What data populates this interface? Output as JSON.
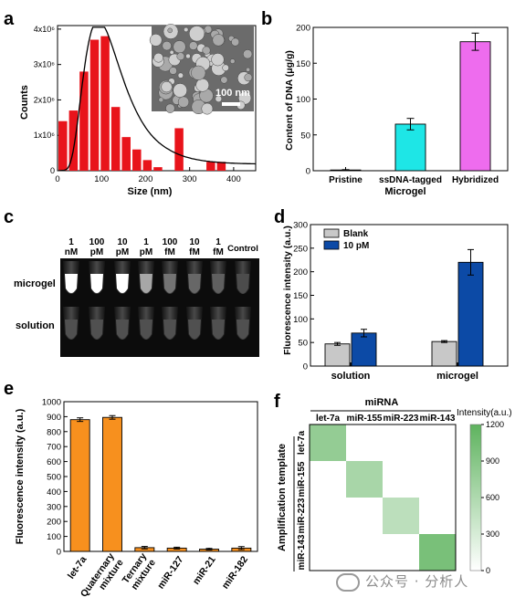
{
  "panels": {
    "a": {
      "label": "a",
      "chart_data": {
        "type": "bar",
        "x": [
          12,
          36,
          60,
          84,
          108,
          132,
          156,
          180,
          204,
          228,
          252,
          276,
          300,
          324,
          348,
          372
        ],
        "values": [
          1400000.0,
          1700000.0,
          2800000.0,
          3700000.0,
          3800000.0,
          1800000.0,
          950000.0,
          600000.0,
          300000.0,
          100000.0,
          0,
          1200000.0,
          0,
          0,
          250000.0,
          250000.0
        ],
        "fit_curve": "log-normal",
        "xlabel": "Size (nm)",
        "ylabel": "Counts",
        "xticks": [
          "0",
          "100",
          "200",
          "300",
          "400"
        ],
        "yticks": [
          "0",
          "1x10⁶",
          "2x10⁶",
          "3x10⁶",
          "4x10⁶"
        ],
        "xlim": [
          0,
          450
        ],
        "ylim": [
          0,
          4100000.0
        ],
        "bar_color": "#e8141b",
        "inset_scale_label": "100 nm"
      }
    },
    "b": {
      "label": "b",
      "chart_data": {
        "type": "bar",
        "categories": [
          "Pristine",
          "ssDNA-tagged",
          "Hybridized"
        ],
        "values": [
          1,
          65,
          180
        ],
        "errors": [
          0.5,
          8,
          12
        ],
        "colors": [
          "#bbbbbb",
          "#1ee6e6",
          "#ee6cee"
        ],
        "xlabel": "Microgel",
        "ylabel": "Content of DNA (μg/g)",
        "yticks": [
          "0",
          "50",
          "100",
          "150",
          "200"
        ],
        "ylim": [
          0,
          200
        ]
      }
    },
    "c": {
      "label": "c",
      "columns": [
        {
          "top": "1",
          "bottom": "nM"
        },
        {
          "top": "100",
          "bottom": "pM"
        },
        {
          "top": "10",
          "bottom": "pM"
        },
        {
          "top": "1",
          "bottom": "pM"
        },
        {
          "top": "100",
          "bottom": "fM"
        },
        {
          "top": "10",
          "bottom": "fM"
        },
        {
          "top": "1",
          "bottom": "fM"
        },
        {
          "top": "Control",
          "bottom": ""
        }
      ],
      "rows": [
        "microgel",
        "solution"
      ]
    },
    "d": {
      "label": "d",
      "chart_data": {
        "type": "bar",
        "categories": [
          "solution",
          "microgel"
        ],
        "series": [
          {
            "name": "Blank",
            "values": [
              47,
              52
            ],
            "errors": [
              3,
              2
            ],
            "color": "#c8c8c8"
          },
          {
            "name": "10 pM",
            "values": [
              70,
              220
            ],
            "errors": [
              8,
              27
            ],
            "color": "#0c4aa6"
          }
        ],
        "ylabel": "Fluorescence intensity (a.u.)",
        "yticks": [
          "0",
          "50",
          "100",
          "150",
          "200",
          "250",
          "300"
        ],
        "ylim": [
          0,
          300
        ],
        "legend": "top-left"
      }
    },
    "e": {
      "label": "e",
      "chart_data": {
        "type": "bar",
        "categories": [
          "let-7a",
          "Quaternary mixture",
          "Ternary mixture",
          "miR-127",
          "miR-21",
          "miR-182"
        ],
        "category_lines": [
          [
            "let-7a"
          ],
          [
            "Quaternary",
            "mixture"
          ],
          [
            "Ternary",
            "mixture"
          ],
          [
            "miR-127"
          ],
          [
            "miR-21"
          ],
          [
            "miR-182"
          ]
        ],
        "values": [
          880,
          895,
          25,
          22,
          15,
          22
        ],
        "errors": [
          12,
          12,
          8,
          6,
          5,
          10
        ],
        "color": "#f7901e",
        "ylabel": "Fluorescence intensity (a.u.)",
        "yticks": [
          "0",
          "100",
          "200",
          "300",
          "400",
          "500",
          "600",
          "700",
          "800",
          "900",
          "1000"
        ],
        "ylim": [
          0,
          1000
        ]
      }
    },
    "f": {
      "label": "f",
      "chart_data": {
        "type": "heatmap",
        "title": "miRNA",
        "ylabel": "Amplification template",
        "col_labels": [
          "let-7a",
          "miR-155",
          "miR-223",
          "miR-143"
        ],
        "row_labels": [
          "let-7a",
          "miR-155",
          "miR-223",
          "miR-143"
        ],
        "values": [
          [
            800,
            0,
            0,
            0
          ],
          [
            0,
            650,
            0,
            0
          ],
          [
            0,
            0,
            500,
            0
          ],
          [
            0,
            0,
            0,
            1000
          ]
        ],
        "colorbar_label": "Intensity(a.u.)",
        "colorbar_ticks": [
          "0",
          "300",
          "600",
          "900",
          "1200"
        ],
        "vmin": 0,
        "vmax": 1200,
        "cmap": [
          "#ffffff",
          "#5eb35e"
        ]
      }
    }
  },
  "watermark": "公众号 · 分析人"
}
